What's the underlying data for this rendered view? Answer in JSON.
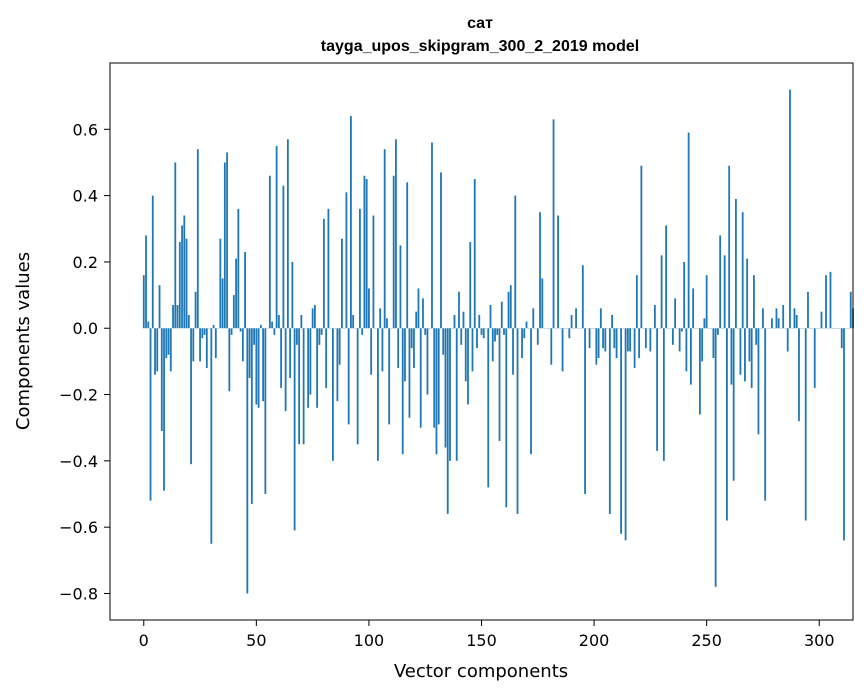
{
  "chart_data": {
    "type": "bar",
    "title_line1": "сат",
    "title_line2": "tayga_upos_skipgram_300_2_2019 model",
    "xlabel": "Vector components",
    "ylabel": "Components values",
    "xlim": [
      -15,
      315
    ],
    "ylim": [
      -0.88,
      0.8
    ],
    "xticks": [
      0,
      50,
      100,
      150,
      200,
      250,
      300
    ],
    "xtick_labels": [
      "0",
      "50",
      "100",
      "150",
      "200",
      "250",
      "300"
    ],
    "yticks": [
      -0.8,
      -0.6,
      -0.4,
      -0.2,
      0.0,
      0.2,
      0.4,
      0.6
    ],
    "ytick_labels": [
      "−0.8",
      "−0.6",
      "−0.4",
      "−0.2",
      "0.0",
      "0.2",
      "0.4",
      "0.6"
    ],
    "bar_color": "#1f77b4",
    "grid": false,
    "legend": "none",
    "values": [
      0.16,
      0.28,
      0.02,
      -0.52,
      0.4,
      -0.14,
      -0.13,
      0.13,
      -0.31,
      -0.49,
      -0.09,
      -0.08,
      -0.13,
      0.07,
      0.5,
      0.07,
      0.26,
      0.31,
      0.34,
      0.27,
      0.04,
      -0.41,
      -0.1,
      0.11,
      0.54,
      -0.1,
      -0.03,
      -0.02,
      -0.12,
      0.0,
      -0.65,
      0.01,
      -0.09,
      0.0,
      0.27,
      0.15,
      0.5,
      0.53,
      -0.19,
      -0.02,
      0.1,
      0.21,
      0.36,
      -0.01,
      -0.1,
      0.23,
      -0.8,
      -0.15,
      -0.53,
      -0.05,
      -0.23,
      -0.24,
      0.01,
      -0.22,
      -0.5,
      0.0,
      0.46,
      0.02,
      -0.02,
      0.55,
      0.04,
      -0.18,
      0.43,
      -0.25,
      0.57,
      -0.15,
      0.2,
      -0.61,
      -0.05,
      -0.35,
      0.04,
      -0.35,
      0.0,
      -0.24,
      -0.2,
      0.06,
      0.07,
      -0.24,
      -0.05,
      -0.02,
      0.33,
      -0.18,
      0.36,
      0.0,
      -0.4,
      0.0,
      -0.22,
      -0.11,
      0.27,
      0.0,
      0.41,
      -0.29,
      0.64,
      0.04,
      0.0,
      -0.35,
      0.36,
      -0.02,
      0.46,
      0.45,
      0.12,
      -0.14,
      0.34,
      0.0,
      -0.4,
      0.06,
      -0.13,
      0.54,
      0.03,
      -0.29,
      0.0,
      0.46,
      0.57,
      -0.12,
      0.25,
      -0.38,
      -0.16,
      0.44,
      -0.27,
      -0.06,
      -0.12,
      0.05,
      0.12,
      -0.3,
      0.09,
      -0.02,
      -0.2,
      0.0,
      0.56,
      -0.3,
      -0.38,
      -0.29,
      0.47,
      -0.08,
      -0.36,
      -0.56,
      -0.4,
      0.0,
      0.04,
      -0.4,
      0.11,
      -0.05,
      0.05,
      -0.16,
      -0.23,
      0.26,
      -0.13,
      0.45,
      -0.06,
      0.04,
      -0.02,
      -0.03,
      0.0,
      -0.48,
      0.07,
      -0.1,
      -0.04,
      -0.02,
      -0.34,
      0.08,
      -0.02,
      -0.54,
      0.11,
      0.13,
      -0.14,
      0.4,
      -0.56,
      0.0,
      -0.09,
      -0.03,
      0.02,
      0.0,
      -0.38,
      0.06,
      0.0,
      -0.05,
      0.35,
      0.15,
      0.0,
      0.0,
      0.0,
      -0.11,
      0.63,
      0.0,
      0.34,
      0.0,
      -0.13,
      0.0,
      0.0,
      -0.03,
      0.04,
      0.0,
      0.06,
      0.0,
      0.0,
      0.19,
      -0.5,
      0.0,
      -0.06,
      0.0,
      0.0,
      -0.11,
      -0.09,
      0.06,
      -0.06,
      -0.07,
      0.0,
      -0.56,
      0.04,
      -0.06,
      -0.09,
      0.0,
      -0.62,
      0.0,
      -0.64,
      -0.07,
      -0.07,
      0.0,
      -0.12,
      0.16,
      -0.09,
      0.49,
      0.0,
      -0.06,
      0.0,
      -0.07,
      0.0,
      0.07,
      -0.37,
      0.0,
      0.22,
      -0.4,
      0.31,
      0.0,
      0.0,
      -0.05,
      0.09,
      0.0,
      -0.07,
      -0.01,
      0.2,
      -0.13,
      0.59,
      -0.17,
      0.12,
      0.0,
      0.0,
      -0.26,
      -0.1,
      0.03,
      0.16,
      0.0,
      0.0,
      -0.09,
      -0.78,
      -0.02,
      0.28,
      0.0,
      0.22,
      -0.58,
      0.49,
      -0.17,
      -0.46,
      0.39,
      0.0,
      -0.14,
      0.35,
      -0.16,
      0.21,
      -0.1,
      -0.18,
      0.16,
      -0.05,
      -0.32,
      0.0,
      0.06,
      -0.52,
      0.0,
      0.0,
      0.03,
      0.0,
      0.06,
      0.03,
      0.0,
      0.07,
      0.0,
      -0.07,
      0.72,
      0.0,
      0.06,
      0.04,
      -0.28,
      0.0,
      0.0,
      -0.58,
      0.11,
      0.0,
      0.0,
      -0.18,
      0.0,
      0.0,
      0.05,
      0.0,
      0.16,
      0.0,
      0.17,
      0.0,
      0.0,
      0.0,
      0.0,
      -0.06,
      -0.64,
      0.0,
      0.0,
      0.11,
      0.06
    ]
  }
}
